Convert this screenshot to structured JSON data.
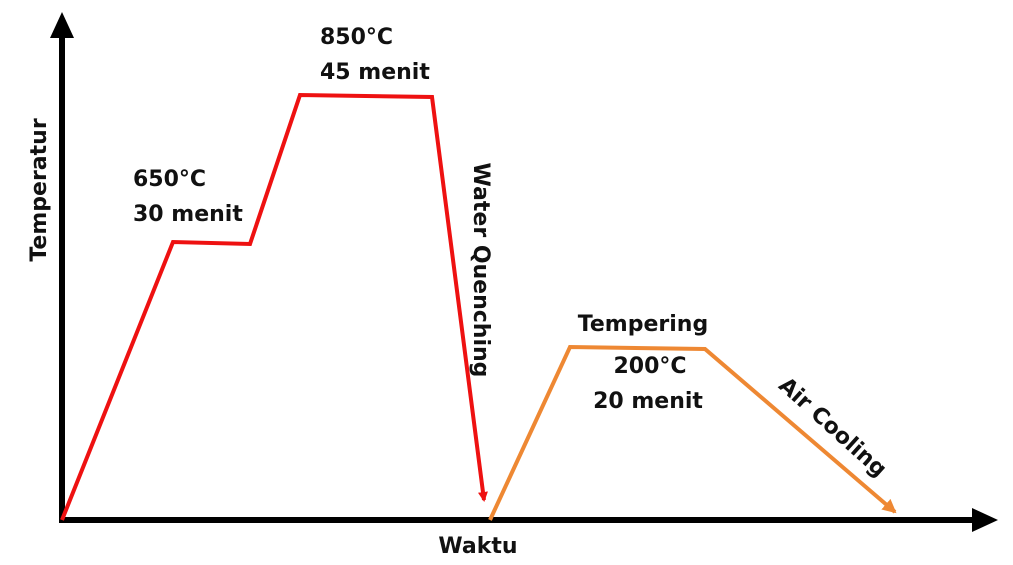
{
  "axes": {
    "y_label": "Temperatur",
    "x_label": "Waktu"
  },
  "stages": [
    {
      "temperature": "650°C",
      "duration": "30 menit"
    },
    {
      "temperature": "850°C",
      "duration": "45 menit"
    },
    {
      "title": "Tempering",
      "temperature": "200°C",
      "duration": "20 menit"
    }
  ],
  "transitions": [
    "Water Quenching",
    "Air Cooling"
  ]
}
